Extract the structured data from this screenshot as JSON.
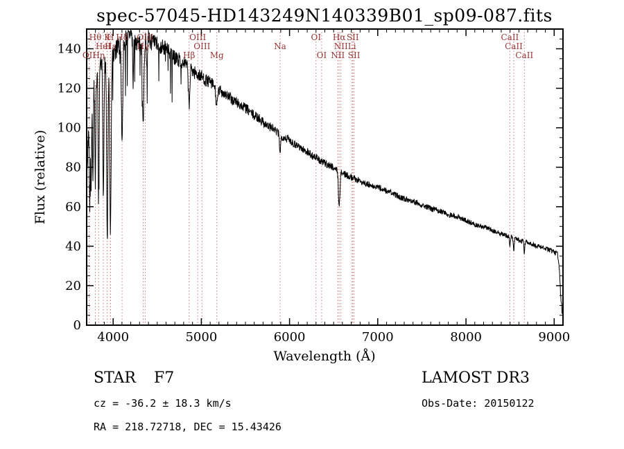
{
  "chart_data": {
    "type": "line",
    "title": "spec-57045-HD143249N140339B01_sp09-087.fits",
    "xlabel": "Wavelength (Å)",
    "ylabel": "Flux (relative)",
    "xlim": [
      3700,
      9100
    ],
    "ylim": [
      0,
      150
    ],
    "xticks": [
      4000,
      5000,
      6000,
      7000,
      8000,
      9000
    ],
    "yticks": [
      0,
      20,
      40,
      60,
      80,
      100,
      120,
      140
    ],
    "grid": false,
    "legend": "none",
    "line_color": "#000000",
    "marker_line_color": "#cc7777",
    "marker_label_color": "#993333",
    "sample_step": 3,
    "noise": {
      "seed": 7,
      "amp_base": 1.0,
      "amp_scale": 5.5,
      "amp_tau": 1500,
      "spike_region": [
        3700,
        4780
      ],
      "spike_prob": 0.08,
      "spike_max": 26
    },
    "continuum": [
      [
        3700,
        68
      ],
      [
        3712,
        88
      ],
      [
        3724,
        105
      ],
      [
        3736,
        112
      ],
      [
        3748,
        118
      ],
      [
        3762,
        122
      ],
      [
        3776,
        126
      ],
      [
        3790,
        128
      ],
      [
        3810,
        129
      ],
      [
        3830,
        128
      ],
      [
        3850,
        129
      ],
      [
        3870,
        131
      ],
      [
        3890,
        132
      ],
      [
        3910,
        133
      ],
      [
        3930,
        134
      ],
      [
        3950,
        133
      ],
      [
        3970,
        134
      ],
      [
        3990,
        135
      ],
      [
        4010,
        137
      ],
      [
        4030,
        139
      ],
      [
        4060,
        141
      ],
      [
        4090,
        143
      ],
      [
        4120,
        144
      ],
      [
        4150,
        146
      ],
      [
        4180,
        147
      ],
      [
        4210,
        147
      ],
      [
        4240,
        145
      ],
      [
        4270,
        143
      ],
      [
        4300,
        142
      ],
      [
        4330,
        142
      ],
      [
        4360,
        144
      ],
      [
        4390,
        145
      ],
      [
        4420,
        144
      ],
      [
        4450,
        143
      ],
      [
        4480,
        143
      ],
      [
        4510,
        142
      ],
      [
        4540,
        141
      ],
      [
        4570,
        141
      ],
      [
        4600,
        140
      ],
      [
        4640,
        138
      ],
      [
        4680,
        136
      ],
      [
        4720,
        135
      ],
      [
        4760,
        134
      ],
      [
        4800,
        133
      ],
      [
        4840,
        131
      ],
      [
        4880,
        130
      ],
      [
        4920,
        128
      ],
      [
        4960,
        127
      ],
      [
        5000,
        126
      ],
      [
        5050,
        124
      ],
      [
        5100,
        123
      ],
      [
        5150,
        121
      ],
      [
        5200,
        119
      ],
      [
        5250,
        118
      ],
      [
        5300,
        116
      ],
      [
        5350,
        114
      ],
      [
        5400,
        113
      ],
      [
        5450,
        111
      ],
      [
        5500,
        110
      ],
      [
        5550,
        108
      ],
      [
        5600,
        106
      ],
      [
        5650,
        105
      ],
      [
        5700,
        103
      ],
      [
        5750,
        101
      ],
      [
        5800,
        100
      ],
      [
        5850,
        98
      ],
      [
        5900,
        96
      ],
      [
        5950,
        95
      ],
      [
        6000,
        94
      ],
      [
        6050,
        92
      ],
      [
        6100,
        91
      ],
      [
        6150,
        89
      ],
      [
        6200,
        88
      ],
      [
        6250,
        86
      ],
      [
        6300,
        85
      ],
      [
        6350,
        83
      ],
      [
        6400,
        82
      ],
      [
        6450,
        81
      ],
      [
        6500,
        80
      ],
      [
        6550,
        78
      ],
      [
        6600,
        77
      ],
      [
        6650,
        76
      ],
      [
        6700,
        75
      ],
      [
        6750,
        74
      ],
      [
        6800,
        73
      ],
      [
        6850,
        72
      ],
      [
        6900,
        71
      ],
      [
        6950,
        70
      ],
      [
        7000,
        70
      ],
      [
        7100,
        68
      ],
      [
        7200,
        66
      ],
      [
        7300,
        64
      ],
      [
        7400,
        63
      ],
      [
        7500,
        61
      ],
      [
        7600,
        59
      ],
      [
        7700,
        58
      ],
      [
        7800,
        56
      ],
      [
        7900,
        55
      ],
      [
        8000,
        53
      ],
      [
        8100,
        51
      ],
      [
        8200,
        50
      ],
      [
        8300,
        48
      ],
      [
        8400,
        46
      ],
      [
        8500,
        45
      ],
      [
        8600,
        43
      ],
      [
        8700,
        42
      ],
      [
        8800,
        40
      ],
      [
        8900,
        39
      ],
      [
        9000,
        37
      ],
      [
        9040,
        36
      ],
      [
        9060,
        28
      ],
      [
        9075,
        14
      ],
      [
        9094,
        5
      ]
    ],
    "absorption_lines": [
      [
        3734,
        50,
        5
      ],
      [
        3750,
        52,
        5
      ],
      [
        3770,
        55,
        5
      ],
      [
        3798,
        60,
        6
      ],
      [
        3835,
        64,
        6
      ],
      [
        3889,
        68,
        6
      ],
      [
        3933.7,
        92,
        7
      ],
      [
        3969,
        88,
        8
      ],
      [
        4101.7,
        48,
        8
      ],
      [
        4226.7,
        22,
        5
      ],
      [
        4340.5,
        42,
        8
      ],
      [
        4383,
        14,
        5
      ],
      [
        4861.3,
        20,
        8
      ],
      [
        5175,
        9,
        10
      ],
      [
        5893,
        8,
        7
      ],
      [
        6562.8,
        18,
        8
      ],
      [
        8498,
        5,
        5
      ],
      [
        8542,
        7,
        5
      ],
      [
        8662,
        6,
        5
      ]
    ],
    "line_markers": [
      {
        "wl": 3727.4,
        "label": "OII",
        "row": 3
      },
      {
        "wl": 3798.0,
        "label": "Hθ",
        "row": 1
      },
      {
        "wl": 3835.4,
        "label": "Hη",
        "row": 3
      },
      {
        "wl": 3889.0,
        "label": "HeI",
        "row": 2
      },
      {
        "wl": 3933.7,
        "label": "K",
        "row": 1
      },
      {
        "wl": 3968.5,
        "label": "H",
        "row": 1
      },
      {
        "wl": 3970.1,
        "label": "Hε",
        "row": 2
      },
      {
        "wl": 4101.7,
        "label": "Hδ",
        "row": 1
      },
      {
        "wl": 4340.5,
        "label": "Hγ",
        "row": 2
      },
      {
        "wl": 4363.2,
        "label": "OIII",
        "row": 1
      },
      {
        "wl": 4861.3,
        "label": "Hβ",
        "row": 3
      },
      {
        "wl": 4958.9,
        "label": "OIII",
        "row": 1
      },
      {
        "wl": 5006.8,
        "label": "OIII",
        "row": 2
      },
      {
        "wl": 5175.3,
        "label": "Mg",
        "row": 3
      },
      {
        "wl": 5893.0,
        "label": "Na",
        "row": 2
      },
      {
        "wl": 6300.2,
        "label": "OI",
        "row": 1
      },
      {
        "wl": 6363.8,
        "label": "OI",
        "row": 3
      },
      {
        "wl": 6548.1,
        "label": "NII",
        "row": 3
      },
      {
        "wl": 6562.8,
        "label": "Hα",
        "row": 1
      },
      {
        "wl": 6583.5,
        "label": "NII",
        "row": 2
      },
      {
        "wl": 6707.9,
        "label": "Li",
        "row": 2
      },
      {
        "wl": 6716.4,
        "label": "SII",
        "row": 1
      },
      {
        "wl": 6730.8,
        "label": "SII",
        "row": 3
      },
      {
        "wl": 8498.0,
        "label": "CaII",
        "row": 1
      },
      {
        "wl": 8542.1,
        "label": "CaII",
        "row": 2
      },
      {
        "wl": 8662.1,
        "label": "CaII",
        "row": 3
      }
    ]
  },
  "footer": {
    "class_name": "STAR",
    "subclass": "F7",
    "survey": "LAMOST DR3",
    "velocity": "cz = -36.2 ± 18.3 km/s",
    "obs_date": "Obs-Date: 20150122",
    "coordinates": "RA = 218.72718, DEC =  15.43426"
  }
}
